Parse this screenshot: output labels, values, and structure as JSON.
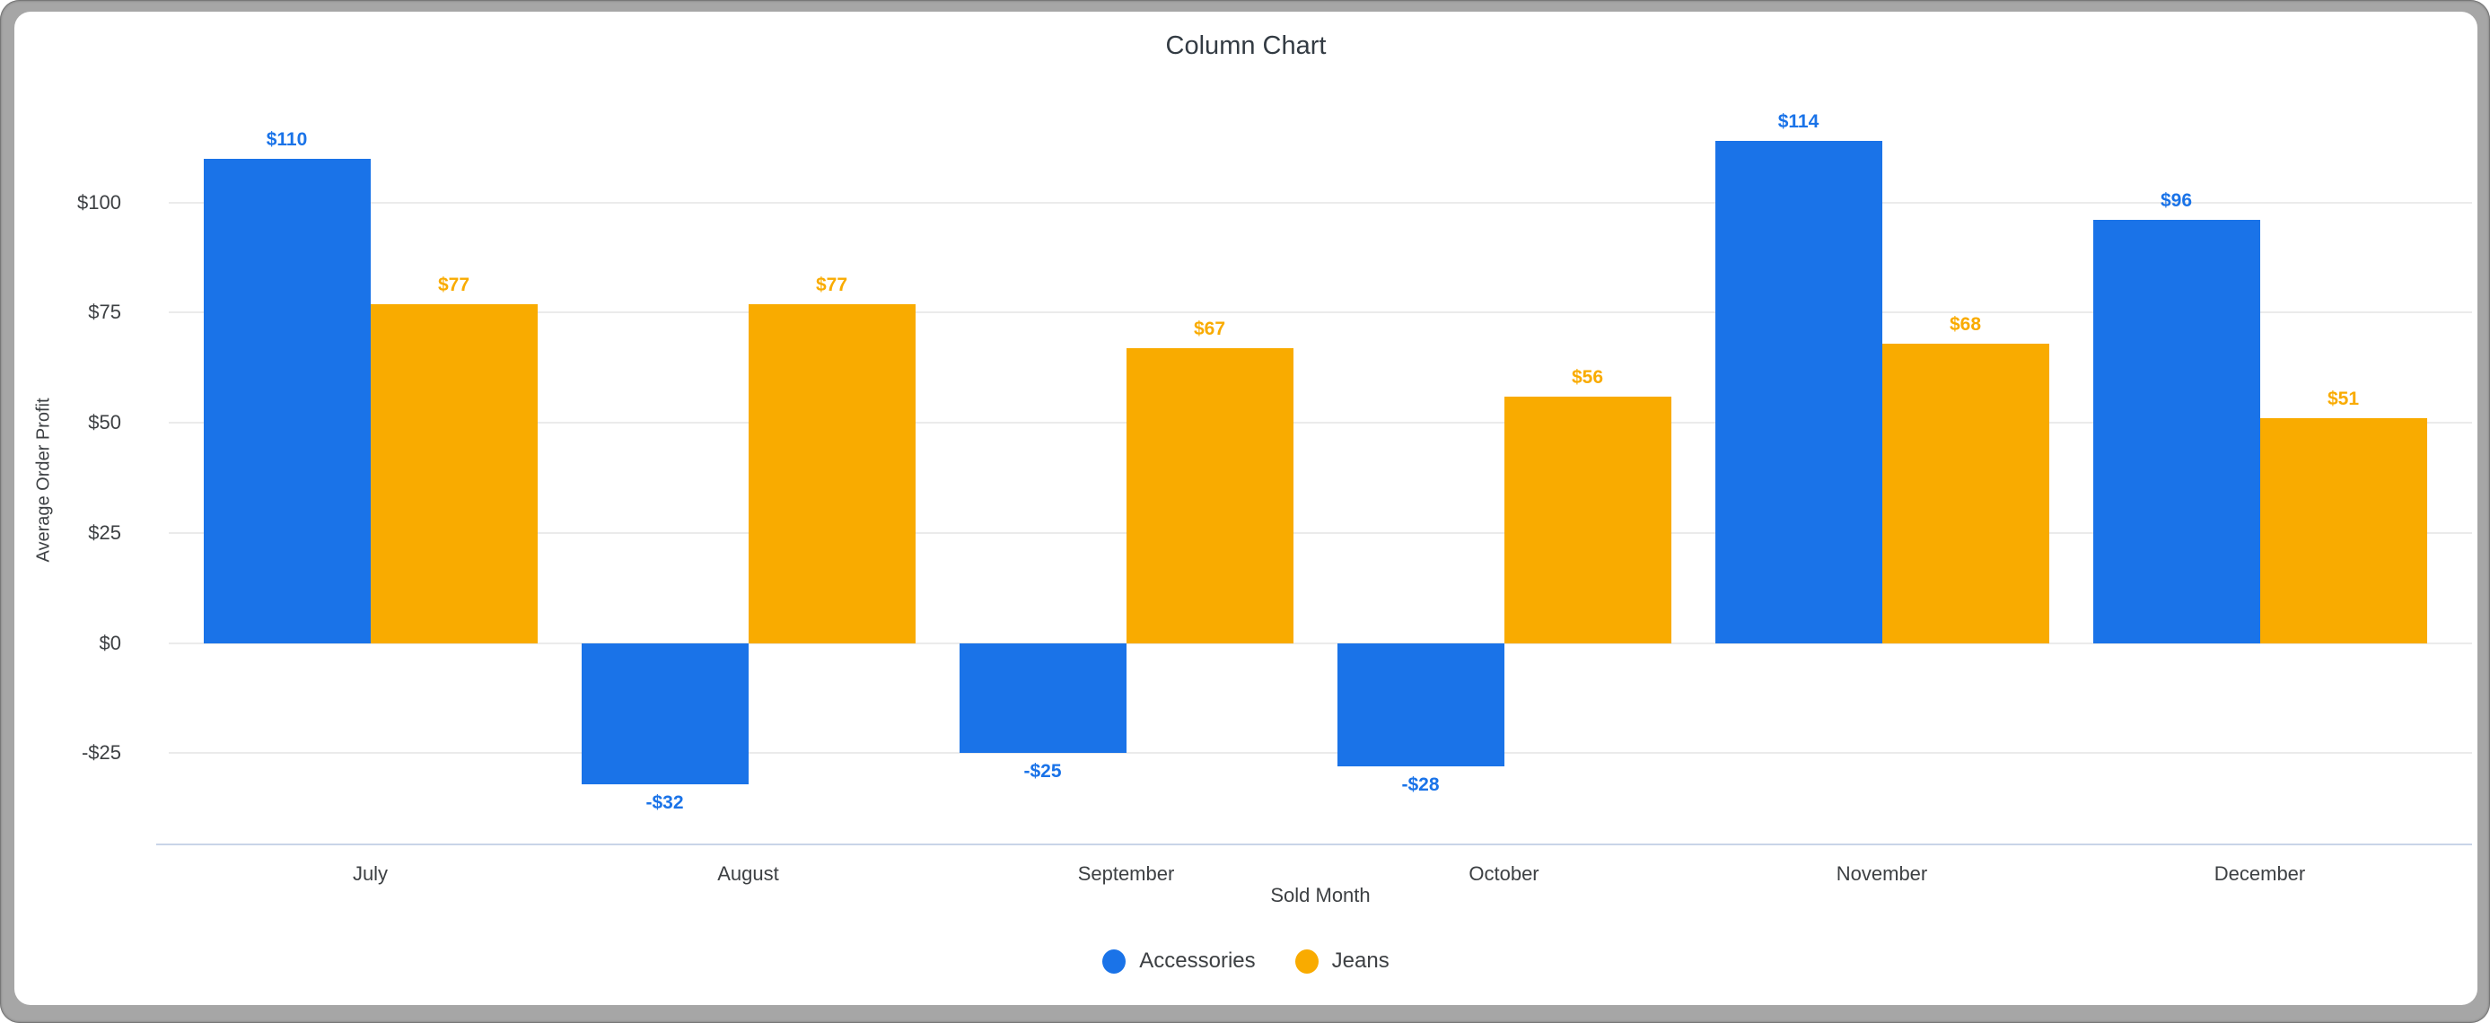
{
  "frame": {
    "color": "#a6a6a6",
    "card_background": "#ffffff"
  },
  "chart_data": {
    "type": "bar",
    "title": "Column Chart",
    "xlabel": "Sold Month",
    "ylabel": "Average Order Profit",
    "categories": [
      "July",
      "August",
      "September",
      "October",
      "November",
      "December"
    ],
    "series": [
      {
        "name": "Accessories",
        "color": "#1a73e8",
        "values": [
          110,
          -32,
          -25,
          -28,
          114,
          96
        ],
        "data_labels": [
          "$110",
          "-$32",
          "-$25",
          "-$28",
          "$114",
          "$96"
        ]
      },
      {
        "name": "Jeans",
        "color": "#f9ab00",
        "values": [
          77,
          77,
          67,
          56,
          68,
          51
        ],
        "data_labels": [
          "$77",
          "$77",
          "$67",
          "$56",
          "$68",
          "$51"
        ]
      }
    ],
    "y_ticks": [
      {
        "value": 100,
        "label": "$100"
      },
      {
        "value": 75,
        "label": "$75"
      },
      {
        "value": 50,
        "label": "$50"
      },
      {
        "value": 25,
        "label": "$25"
      },
      {
        "value": 0,
        "label": "$0"
      },
      {
        "value": -25,
        "label": "-$25"
      }
    ],
    "ylim": [
      -45.5,
      119.5
    ],
    "grid": true,
    "legend_position": "bottom",
    "colors": {
      "gridline": "#ebebeb",
      "axis_line": "#c9d4e8",
      "tick_text": "#3d4043",
      "title_text": "#333b43"
    }
  }
}
